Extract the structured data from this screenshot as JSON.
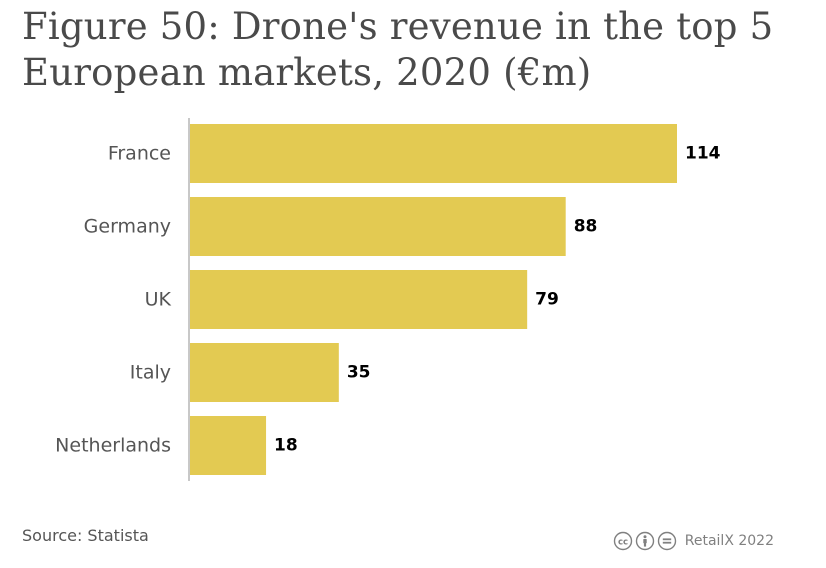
{
  "title": "Figure 50: Drone's revenue in the top 5 European markets, 2020 (€m)",
  "source": "Source: Statista",
  "credit": "RetailX 2022",
  "icons": [
    "creative-commons-icon",
    "attribution-icon",
    "no-derivatives-icon"
  ],
  "colors": {
    "bar": "#e3ca52",
    "axis": "#c8c8c8"
  },
  "chart_data": {
    "type": "bar",
    "orientation": "horizontal",
    "categories": [
      "France",
      "Germany",
      "UK",
      "Italy",
      "Netherlands"
    ],
    "values": [
      114,
      88,
      79,
      35,
      18
    ],
    "title": "Figure 50: Drone's revenue in the top 5 European markets, 2020 (€m)",
    "xlabel": "",
    "ylabel": "",
    "xlim": [
      0,
      114
    ],
    "grid": false,
    "legend": "none",
    "data_labels": true
  }
}
